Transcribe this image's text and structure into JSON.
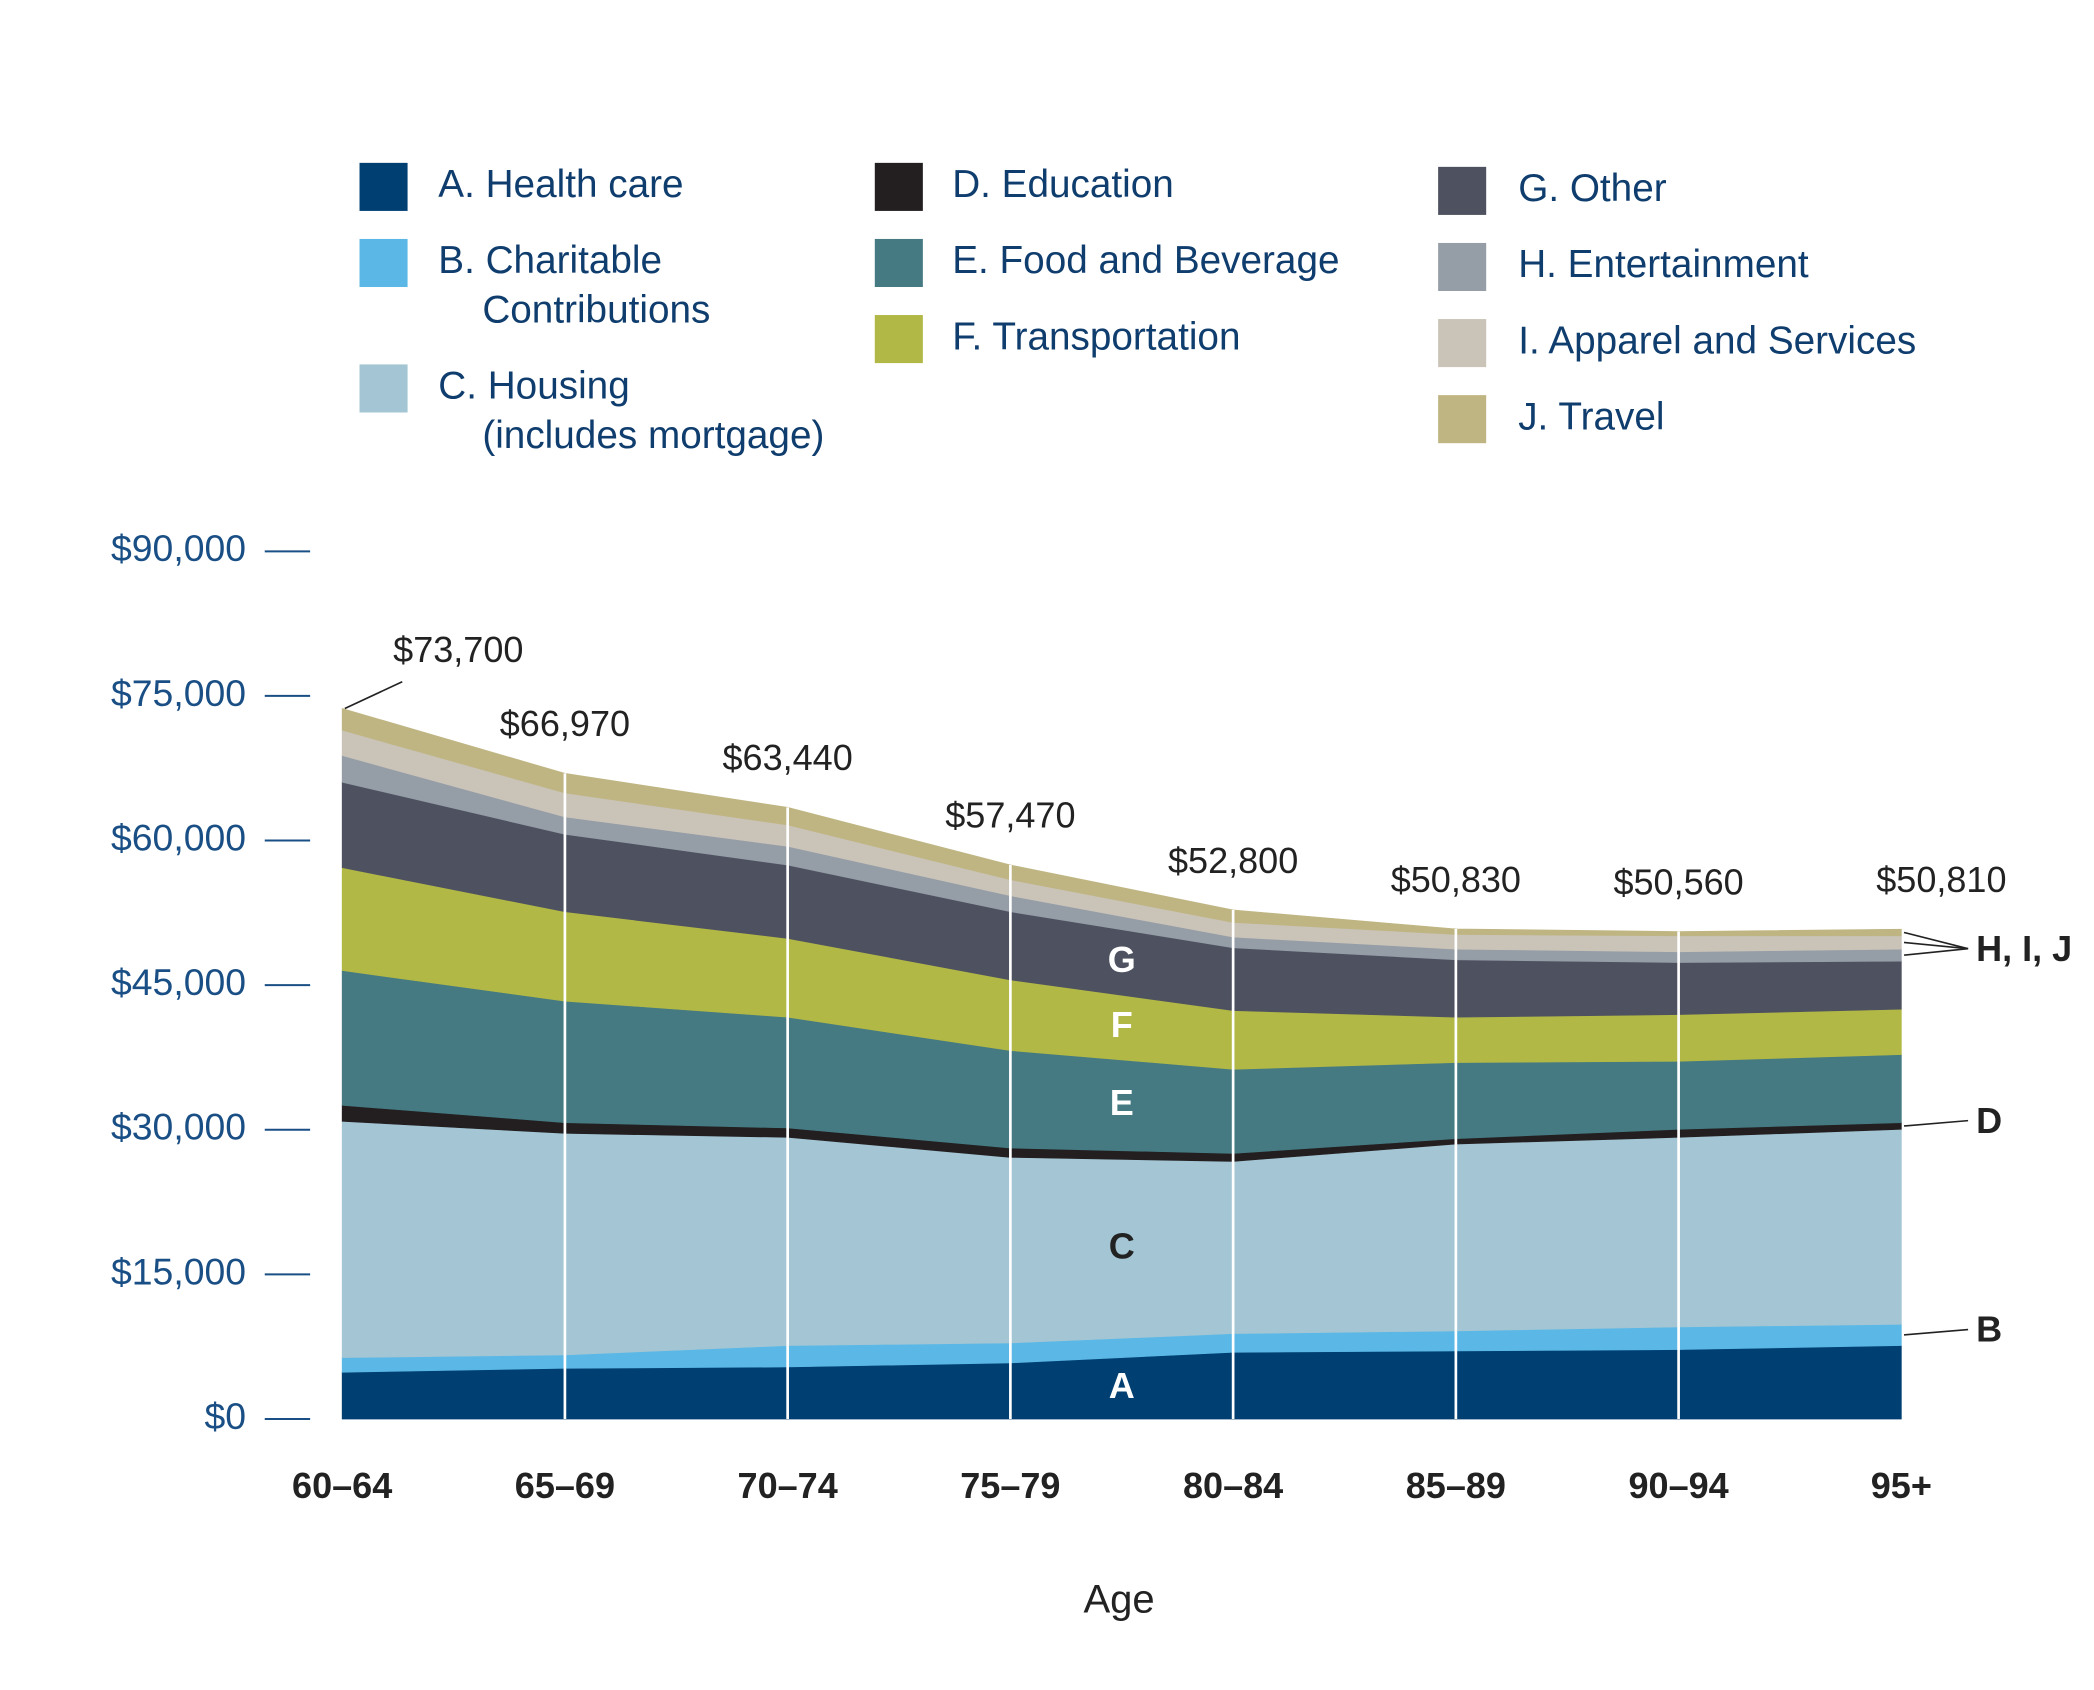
{
  "chart_data": {
    "type": "stacked_area",
    "x_label": "Age",
    "categories": [
      "60–64",
      "65–69",
      "70–74",
      "75–79",
      "80–84",
      "85–89",
      "90–94",
      "95+"
    ],
    "series": [
      {
        "name": "A. Health care",
        "letter": "A",
        "color": "#003f72",
        "values": [
          4850,
          5260,
          5400,
          5820,
          6920,
          7060,
          7200,
          7620
        ]
      },
      {
        "name": "B. Charitable Contributions",
        "color": "#5bb8e6",
        "values": [
          1520,
          1390,
          2220,
          2070,
          1940,
          2080,
          2350,
          2210
        ]
      },
      {
        "name": "C. Housing (includes mortgage)",
        "letter": "C",
        "color": "#a3c5d4",
        "values": [
          24510,
          22980,
          21600,
          19250,
          17860,
          19380,
          19670,
          20220
        ]
      },
      {
        "name": "D. Education",
        "color": "#231f20",
        "values": [
          1660,
          1110,
          970,
          970,
          830,
          560,
          830,
          690
        ]
      },
      {
        "name": "E. Food and Beverage",
        "letter": "E",
        "color": "#457a82",
        "values": [
          13980,
          12600,
          11490,
          10110,
          8730,
          7890,
          7060,
          7060
        ]
      },
      {
        "name": "F. Transportation",
        "letter": "F",
        "color": "#b2b845",
        "values": [
          10670,
          9280,
          8170,
          7330,
          6090,
          4710,
          4840,
          4710
        ]
      },
      {
        "name": "G. Other",
        "letter": "G",
        "color": "#4e5260",
        "values": [
          8860,
          8030,
          7610,
          7070,
          6510,
          5950,
          5400,
          4980
        ]
      },
      {
        "name": "H. Entertainment",
        "color": "#959da7",
        "values": [
          2770,
          1800,
          1940,
          1660,
          1110,
          1110,
          1110,
          1250
        ]
      },
      {
        "name": "I. Apparel and Services",
        "color": "#cac3b8",
        "values": [
          2630,
          2490,
          2220,
          1660,
          1520,
          1520,
          1660,
          1380
        ]
      },
      {
        "name": "J. Travel",
        "color": "#bfb582",
        "values": [
          2250,
          2030,
          1820,
          1530,
          1290,
          570,
          440,
          690
        ]
      }
    ],
    "totals": [
      73700,
      66970,
      63440,
      57470,
      52800,
      50830,
      50560,
      50810
    ],
    "total_labels": [
      "$73,700",
      "$66,970",
      "$63,440",
      "$57,470",
      "$52,800",
      "$50,830",
      "$50,560",
      "$50,810"
    ],
    "annotations": [
      "B",
      "D",
      "H, I, J"
    ],
    "ylim": [
      0,
      90000
    ],
    "yticks": [
      {
        "value": 0,
        "label": "$0"
      },
      {
        "value": 15000,
        "label": "$15,000"
      },
      {
        "value": 30000,
        "label": "$30,000"
      },
      {
        "value": 45000,
        "label": "$45,000"
      },
      {
        "value": 60000,
        "label": "$60,000"
      },
      {
        "value": 75000,
        "label": "$75,000"
      },
      {
        "value": 90000,
        "label": "$90,000"
      }
    ]
  }
}
